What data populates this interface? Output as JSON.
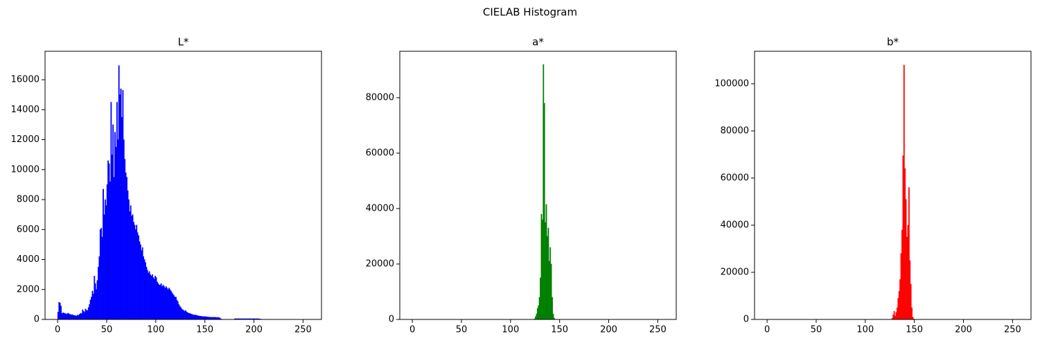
{
  "title": "CIELAB Histogram",
  "chart_data": [
    {
      "type": "histogram",
      "title": "L*",
      "color": "#0000ff",
      "xlim": [
        -12.8,
        268.8
      ],
      "ylim": [
        0,
        17900
      ],
      "xticks": [
        0,
        50,
        100,
        150,
        200,
        250
      ],
      "yticks": [
        0,
        2000,
        4000,
        6000,
        8000,
        10000,
        12000,
        14000,
        16000
      ],
      "bins": [
        0,
        1,
        2,
        3,
        4,
        5,
        6,
        7,
        8,
        9,
        10,
        11,
        12,
        13,
        14,
        15,
        16,
        17,
        18,
        19,
        20,
        21,
        22,
        23,
        24,
        25,
        26,
        27,
        28,
        29,
        30,
        31,
        32,
        33,
        34,
        35,
        36,
        37,
        38,
        39,
        40,
        41,
        42,
        43,
        44,
        45,
        46,
        47,
        48,
        49,
        50,
        51,
        52,
        53,
        54,
        55,
        56,
        57,
        58,
        59,
        60,
        61,
        62,
        63,
        64,
        65,
        66,
        67,
        68,
        69,
        70,
        71,
        72,
        73,
        74,
        75,
        76,
        77,
        78,
        79,
        80,
        81,
        82,
        83,
        84,
        85,
        86,
        87,
        88,
        89,
        90,
        91,
        92,
        93,
        94,
        95,
        96,
        97,
        98,
        99,
        100,
        101,
        102,
        103,
        104,
        105,
        106,
        107,
        108,
        109,
        110,
        111,
        112,
        113,
        114,
        115,
        116,
        117,
        118,
        119,
        120,
        121,
        122,
        123,
        124,
        125,
        126,
        127,
        128,
        129,
        130,
        131,
        132,
        133,
        134,
        135,
        136,
        137,
        138,
        139,
        140,
        141,
        142,
        143,
        144,
        145,
        146,
        147,
        148,
        149,
        150,
        151,
        152,
        153,
        154,
        155,
        156,
        157,
        158,
        159,
        160,
        161,
        162,
        163,
        164,
        165,
        166,
        167,
        168,
        169,
        170,
        171,
        172,
        173,
        174,
        175,
        176,
        177,
        178,
        179,
        180,
        181,
        182,
        183,
        184,
        185,
        186,
        187,
        188,
        189,
        190,
        191,
        192,
        193,
        194,
        195,
        196,
        197,
        198,
        199,
        200,
        201,
        202,
        203,
        204,
        205,
        206,
        207,
        208,
        209,
        210,
        256
      ],
      "values": [
        500,
        1150,
        1100,
        900,
        400,
        450,
        420,
        400,
        380,
        350,
        420,
        380,
        350,
        300,
        330,
        300,
        280,
        260,
        250,
        240,
        300,
        280,
        350,
        420,
        380,
        650,
        550,
        480,
        700,
        620,
        600,
        800,
        1000,
        1300,
        1500,
        1900,
        1700,
        2900,
        2400,
        2000,
        2600,
        3500,
        4200,
        6000,
        6100,
        5500,
        8700,
        7000,
        8000,
        7600,
        9000,
        10600,
        10400,
        9200,
        14500,
        11000,
        13000,
        9500,
        12500,
        11500,
        14500,
        12000,
        16950,
        15000,
        15400,
        13500,
        15300,
        12000,
        10700,
        9800,
        9500,
        8600,
        8000,
        7200,
        7600,
        6900,
        7000,
        6500,
        6300,
        6000,
        6300,
        5800,
        5600,
        5200,
        5000,
        4600,
        4800,
        4200,
        4000,
        3800,
        3500,
        3300,
        3100,
        3200,
        3000,
        2900,
        3000,
        2800,
        2700,
        2900,
        2800,
        2500,
        2400,
        2300,
        2300,
        2400,
        2200,
        2300,
        2200,
        2100,
        2200,
        2100,
        2000,
        2100,
        2000,
        1900,
        1800,
        1700,
        1600,
        1500,
        1500,
        1300,
        1200,
        1000,
        900,
        800,
        700,
        650,
        600,
        550,
        600,
        500,
        450,
        420,
        400,
        380,
        350,
        330,
        300,
        300,
        300,
        280,
        260,
        240,
        230,
        220,
        210,
        200,
        200,
        190,
        200,
        180,
        170,
        160,
        160,
        150,
        150,
        140,
        150,
        150,
        150,
        140,
        130,
        140,
        120,
        100,
        30,
        20,
        10,
        10,
        10,
        10,
        10,
        10,
        10,
        10,
        10,
        10,
        10,
        10,
        50,
        50,
        50,
        50,
        50,
        50,
        50,
        50,
        50,
        50,
        50,
        50,
        50,
        50,
        50,
        50,
        50,
        50,
        50,
        50,
        50,
        50,
        50,
        50,
        50,
        40,
        30,
        20,
        10,
        10,
        0
      ]
    },
    {
      "type": "histogram",
      "title": "a*",
      "color": "#008000",
      "xlim": [
        -12.8,
        268.8
      ],
      "ylim": [
        0,
        96750
      ],
      "xticks": [
        0,
        50,
        100,
        150,
        200,
        250
      ],
      "yticks": [
        0,
        20000,
        40000,
        60000,
        80000
      ],
      "bins": [
        0,
        120,
        121,
        122,
        123,
        124,
        125,
        126,
        127,
        128,
        129,
        130,
        131,
        132,
        133,
        134,
        135,
        136,
        137,
        138,
        139,
        140,
        141,
        142,
        143,
        144,
        145,
        146,
        147,
        148,
        149,
        150,
        256
      ],
      "values": [
        0,
        0,
        0,
        0,
        0,
        200,
        1000,
        2000,
        4000,
        5000,
        8000,
        15000,
        38000,
        36000,
        92000,
        78000,
        35000,
        41500,
        30000,
        33000,
        21000,
        26000,
        20000,
        8000,
        2000,
        500,
        100,
        0,
        0,
        0,
        0,
        0
      ]
    },
    {
      "type": "histogram",
      "title": "b*",
      "color": "#ff0000",
      "xlim": [
        -12.8,
        268.8
      ],
      "ylim": [
        0,
        113800
      ],
      "xticks": [
        0,
        50,
        100,
        150,
        200,
        250
      ],
      "yticks": [
        0,
        20000,
        40000,
        60000,
        80000,
        100000
      ],
      "bins": [
        0,
        120,
        121,
        122,
        123,
        124,
        125,
        126,
        127,
        128,
        129,
        130,
        131,
        132,
        133,
        134,
        135,
        136,
        137,
        138,
        139,
        140,
        141,
        142,
        143,
        144,
        145,
        146,
        147,
        148,
        149,
        150,
        256
      ],
      "values": [
        0,
        0,
        0,
        0,
        0,
        0,
        0,
        0,
        500,
        2000,
        3500,
        1500,
        3000,
        5000,
        9000,
        12000,
        17000,
        28000,
        38000,
        69500,
        108000,
        64000,
        51000,
        35000,
        40000,
        56000,
        25000,
        15000,
        5000,
        1000,
        200,
        0
      ]
    }
  ]
}
